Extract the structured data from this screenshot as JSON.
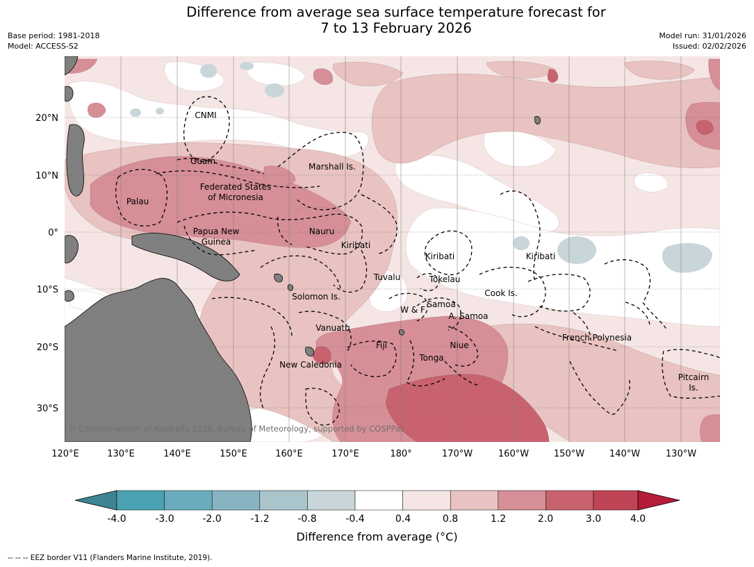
{
  "title": {
    "line1": "Difference from average sea surface temperature forecast for",
    "line2": "7 to 13 February 2026"
  },
  "meta": {
    "base_period": "Base period: 1981-2018",
    "model": "Model: ACCESS-S2",
    "model_run": "Model run: 31/01/2026",
    "issued": "Issued: 02/02/2026"
  },
  "map": {
    "lon_labels": [
      "120°E",
      "130°E",
      "140°E",
      "150°E",
      "160°E",
      "170°E",
      "180°",
      "170°W",
      "160°W",
      "150°W",
      "140°W",
      "130°W"
    ],
    "lat_labels": [
      "20°N",
      "10°N",
      "0°",
      "10°S",
      "20°S",
      "30°S"
    ],
    "region_labels": [
      "CNMI",
      "Guam",
      "Marshall Is.",
      "Federated States",
      "of Micronesia",
      "Palau",
      "Papua New",
      "Guinea",
      "Nauru",
      "Kiribati",
      "Kiribati",
      "Kiribati",
      "Tuvalu",
      "Tokelau",
      "Solomon Is.",
      "W & F",
      "Samoa",
      "A. Samoa",
      "Cook Is.",
      "Vanuatu",
      "Fiji",
      "Niue",
      "Tonga",
      "French Polynesia",
      "New Caledonia",
      "Pitcairn",
      "Is."
    ],
    "copyright": "© Commonwealth of Australia 2026, Bureau of Meteorology, supported by COSPPac",
    "land_color": "#808080"
  },
  "colorbar": {
    "tick_labels": [
      "-4.0",
      "-3.0",
      "-2.0",
      "-1.2",
      "-0.8",
      "-0.4",
      "0.4",
      "0.8",
      "1.2",
      "2.0",
      "3.0",
      "4.0"
    ],
    "colors": [
      "#3d8593",
      "#4aa1b3",
      "#6aacbd",
      "#88b4c2",
      "#a9c4cb",
      "#c8d6da",
      "#ffffff",
      "#f5e6e5",
      "#e8c3c1",
      "#d68f97",
      "#c9626f",
      "#bf4456",
      "#b51c3a"
    ],
    "label": "Difference from average (°C)"
  },
  "footer": "--  --  -- EEZ border V11 (Flanders Marine Institute, 2019)."
}
